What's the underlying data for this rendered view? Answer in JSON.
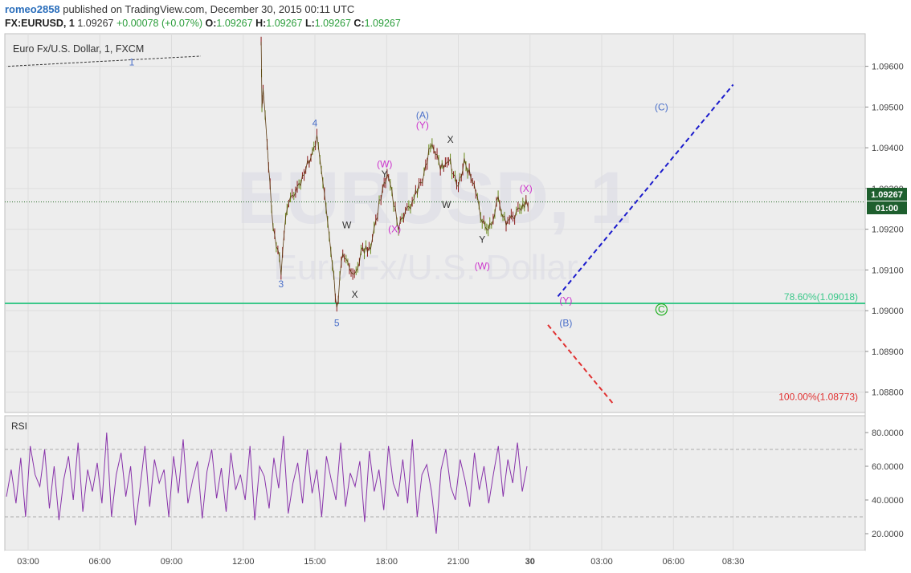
{
  "header": {
    "author": "romeo2858",
    "published_text": "published on TradingView.com, December 30, 2015 00:11 UTC",
    "symbol": "FX:EURUSD, 1",
    "last": "1.09267",
    "change": "+0.00078 (+0.07%)",
    "o_label": "O:",
    "o": "1.09267",
    "h_label": "H:",
    "h": "1.09267",
    "l_label": "L:",
    "l": "1.09267",
    "c_label": "C:",
    "c": "1.09267"
  },
  "chart_data": [
    {
      "type": "candlestick",
      "title": "Euro Fx/U.S. Dollar, 1, FXCM",
      "watermark_symbol": "EURUSD, 1",
      "watermark_name": "Euro Fx/U.S. Dollar",
      "ylim": [
        1.0875,
        1.0968
      ],
      "y_ticks": [
        "1.09600",
        "1.09500",
        "1.09400",
        "1.09300",
        "1.09200",
        "1.09100",
        "1.09000",
        "1.08900",
        "1.08800"
      ],
      "x_ticks": [
        "03:00",
        "06:00",
        "09:00",
        "12:00",
        "15:00",
        "18:00",
        "21:00",
        "30",
        "03:00",
        "06:00",
        "08:30"
      ],
      "current_price_label": "1.09267",
      "countdown_label": "01:00",
      "price_path": [
        [
          "12:45",
          1.0966
        ],
        [
          "12:47",
          1.095
        ],
        [
          "12:50",
          1.0955
        ],
        [
          "13:00",
          1.094
        ],
        [
          "13:15",
          1.092
        ],
        [
          "13:35",
          1.091
        ],
        [
          "13:50",
          1.0926
        ],
        [
          "14:20",
          1.093
        ],
        [
          "14:50",
          1.0938
        ],
        [
          "15:05",
          1.0942
        ],
        [
          "15:20",
          1.0932
        ],
        [
          "15:40",
          1.0915
        ],
        [
          "15:55",
          1.09
        ],
        [
          "16:10",
          1.0915
        ],
        [
          "16:35",
          1.0908
        ],
        [
          "17:00",
          1.0915
        ],
        [
          "17:20",
          1.0916
        ],
        [
          "17:50",
          1.093
        ],
        [
          "18:05",
          1.0933
        ],
        [
          "18:30",
          1.092
        ],
        [
          "19:00",
          1.0926
        ],
        [
          "19:30",
          1.0932
        ],
        [
          "19:50",
          1.0941
        ],
        [
          "20:15",
          1.0935
        ],
        [
          "20:40",
          1.0936
        ],
        [
          "21:00",
          1.0931
        ],
        [
          "21:15",
          1.0937
        ],
        [
          "21:40",
          1.093
        ],
        [
          "22:00",
          1.0922
        ],
        [
          "22:15",
          1.092
        ],
        [
          "22:40",
          1.0927
        ],
        [
          "23:00",
          1.0921
        ],
        [
          "23:30",
          1.0925
        ],
        [
          "23:50",
          1.0926
        ],
        [
          "00:00",
          1.09267
        ]
      ],
      "levels": [
        {
          "label": "78.60%(1.09018)",
          "price": 1.09018,
          "color": "#3cc88a"
        },
        {
          "label": "100.00%(1.08773)",
          "price": 1.08773,
          "color": "#e03030"
        }
      ],
      "projections": [
        {
          "from": [
            "01:10",
            1.09035
          ],
          "to": [
            "08:30",
            1.09555
          ],
          "color": "#1a1acc"
        },
        {
          "from": [
            "00:45",
            1.08965
          ],
          "to": [
            "03:30",
            1.0877
          ],
          "color": "#e03030"
        }
      ],
      "wave_labels": [
        {
          "text": "1",
          "color": "#4a6fc9",
          "at": [
            "07:20",
            1.0961
          ]
        },
        {
          "text": "3",
          "color": "#4a6fc9",
          "at": [
            "13:35",
            1.09065
          ]
        },
        {
          "text": "4",
          "color": "#4a6fc9",
          "at": [
            "15:00",
            1.0946
          ]
        },
        {
          "text": "5",
          "color": "#4a6fc9",
          "at": [
            "15:55",
            1.0897
          ]
        },
        {
          "text": "W",
          "color": "#333333",
          "at": [
            "16:20",
            1.0921
          ]
        },
        {
          "text": "X",
          "color": "#333333",
          "at": [
            "16:40",
            1.0904
          ]
        },
        {
          "text": "(W)",
          "color": "#cc33cc",
          "at": [
            "17:55",
            1.0936
          ]
        },
        {
          "text": "Y",
          "color": "#333333",
          "at": [
            "17:55",
            1.09335
          ]
        },
        {
          "text": "(X)",
          "color": "#cc33cc",
          "at": [
            "18:20",
            1.092
          ]
        },
        {
          "text": "(A)",
          "color": "#4a6fc9",
          "at": [
            "19:30",
            1.0948
          ]
        },
        {
          "text": "(Y)",
          "color": "#cc33cc",
          "at": [
            "19:30",
            1.09455
          ]
        },
        {
          "text": "X",
          "color": "#333333",
          "at": [
            "20:40",
            1.0942
          ]
        },
        {
          "text": "W",
          "color": "#333333",
          "at": [
            "20:30",
            1.0926
          ]
        },
        {
          "text": "Y",
          "color": "#333333",
          "at": [
            "22:00",
            1.09175
          ]
        },
        {
          "text": "(W)",
          "color": "#cc33cc",
          "at": [
            "22:00",
            1.0911
          ]
        },
        {
          "text": "(X)",
          "color": "#cc33cc",
          "at": [
            "23:50",
            1.093
          ]
        },
        {
          "text": "(Y)",
          "color": "#cc33cc",
          "at": [
            "01:30",
            1.09025
          ]
        },
        {
          "text": "(B)",
          "color": "#4a6fc9",
          "at": [
            "01:30",
            1.0897
          ]
        },
        {
          "text": "(C)",
          "color": "#4a6fc9",
          "at": [
            "05:30",
            1.095
          ]
        },
        {
          "text": "C",
          "color": "#22b022",
          "at": [
            "05:30",
            1.09003
          ]
        }
      ]
    },
    {
      "type": "line",
      "title": "RSI",
      "ylim": [
        10,
        90
      ],
      "y_ticks": [
        "80.0000",
        "60.0000",
        "40.0000",
        "20.0000"
      ],
      "bands": [
        70,
        30
      ],
      "color": "#8833aa",
      "series": [
        {
          "values": [
            42,
            58,
            38,
            65,
            30,
            72,
            55,
            48,
            70,
            35,
            60,
            28,
            52,
            66,
            40,
            74,
            33,
            58,
            45,
            62,
            38,
            80,
            30,
            55,
            68,
            42,
            60,
            25,
            48,
            72,
            36,
            64,
            50,
            58,
            30,
            66,
            44,
            76,
            38,
            52,
            63,
            29,
            57,
            70,
            41,
            59,
            33,
            68,
            46,
            55,
            40,
            72,
            28,
            60,
            54,
            35,
            65,
            47,
            78,
            32,
            50,
            62,
            38,
            70,
            44,
            58,
            30,
            66,
            52,
            40,
            74,
            36,
            56,
            48,
            63,
            27,
            69,
            45,
            58,
            34,
            72,
            50,
            42,
            64,
            38,
            76,
            30,
            55,
            61,
            45,
            20,
            58,
            70,
            48,
            40,
            64,
            52,
            36,
            68,
            46,
            60,
            38,
            56,
            72,
            42,
            64,
            50,
            74,
            45,
            60
          ]
        }
      ]
    }
  ]
}
